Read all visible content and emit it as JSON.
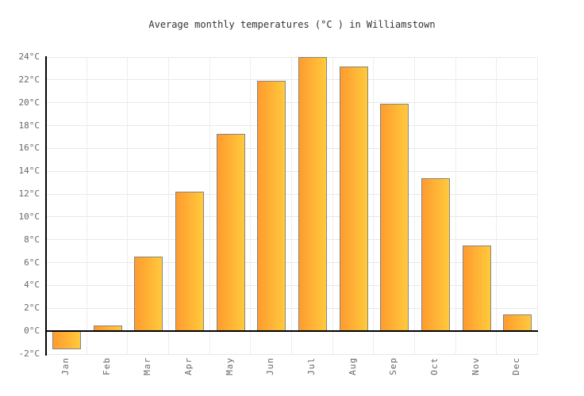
{
  "chart_data": {
    "type": "bar",
    "title": "Average monthly temperatures (°C ) in Williamstown",
    "categories": [
      "Jan",
      "Feb",
      "Mar",
      "Apr",
      "May",
      "Jun",
      "Jul",
      "Aug",
      "Sep",
      "Oct",
      "Nov",
      "Dec"
    ],
    "values": [
      -1.6,
      0.5,
      6.5,
      12.2,
      17.3,
      21.9,
      24.0,
      23.2,
      19.9,
      13.4,
      7.5,
      1.5
    ],
    "unit": "°C",
    "xlabel": "",
    "ylabel": "",
    "ylim": [
      -2,
      24
    ],
    "y_ticks": [
      24,
      22,
      20,
      18,
      16,
      14,
      12,
      10,
      8,
      6,
      4,
      2,
      0,
      -2
    ],
    "y_tick_suffix": "°C",
    "grid": true,
    "legend_position": "none",
    "colors": {
      "bar_gradient_left": "#FF9B2F",
      "bar_gradient_right": "#FFCA3C",
      "bar_border": "#858585",
      "grid_line": "#E8E8E8",
      "axis_line": "#000000",
      "tick_label": "#666666",
      "title_text": "#333333"
    }
  }
}
